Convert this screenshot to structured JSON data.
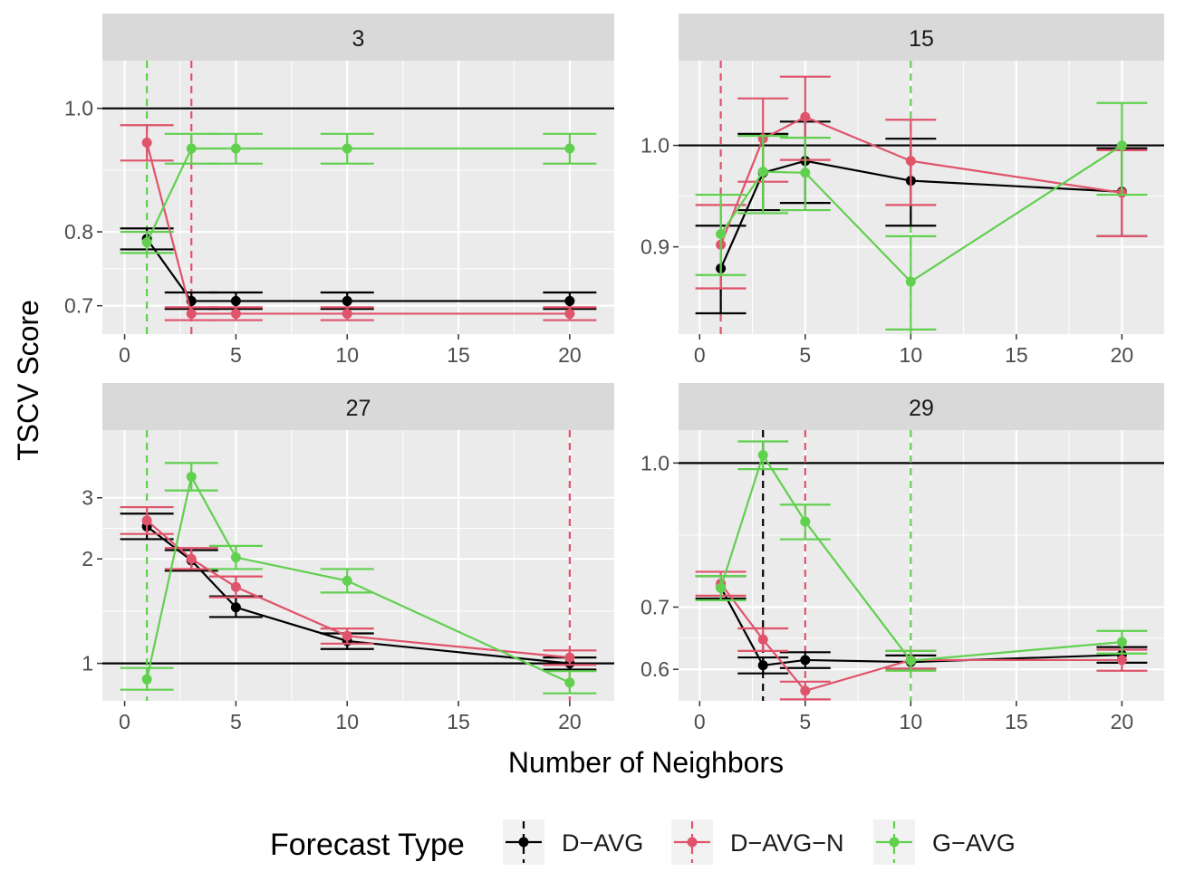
{
  "chart_data": {
    "type": "line",
    "xlabel": "Number of Neighbors",
    "ylabel": "TSCV Score",
    "x": [
      1,
      3,
      5,
      10,
      20
    ],
    "xlim": [
      -1,
      22
    ],
    "xticks": [
      0,
      5,
      10,
      15,
      20
    ],
    "colors": {
      "D-AVG": "#000000",
      "D-AVG-N": "#DF536B",
      "G-AVG": "#61D04F"
    },
    "legend": {
      "title": "Forecast Type",
      "position": "bottom",
      "items": [
        {
          "label": "D−AVG",
          "series": "D-AVG"
        },
        {
          "label": "D−AVG−N",
          "series": "D-AVG-N"
        },
        {
          "label": "G−AVG",
          "series": "G-AVG"
        }
      ]
    },
    "panels": [
      {
        "strip": "3",
        "yscale": "log",
        "ylim": [
          0.665,
          1.09
        ],
        "yticks": [
          0.7,
          0.8,
          1.0
        ],
        "ytick_labels": [
          "0.7",
          "0.8",
          "1.0"
        ],
        "hline": 1.0,
        "vlines": [
          {
            "series": "G-AVG",
            "x": 1
          },
          {
            "series": "D-AVG-N",
            "x": 3
          }
        ],
        "series": [
          {
            "name": "D-AVG",
            "values": [
              0.79,
              0.706,
              0.706,
              0.706,
              0.706
            ],
            "lower": [
              0.775,
              0.696,
              0.696,
              0.696,
              0.696
            ],
            "upper": [
              0.805,
              0.717,
              0.717,
              0.717,
              0.717
            ]
          },
          {
            "name": "D-AVG-N",
            "values": [
              0.94,
              0.69,
              0.69,
              0.69,
              0.69
            ],
            "lower": [
              0.91,
              0.682,
              0.682,
              0.682,
              0.682
            ],
            "upper": [
              0.97,
              0.698,
              0.698,
              0.698,
              0.698
            ]
          },
          {
            "name": "G-AVG",
            "values": [
              0.785,
              0.93,
              0.93,
              0.93,
              0.93
            ],
            "lower": [
              0.77,
              0.905,
              0.905,
              0.905,
              0.905
            ],
            "upper": [
              0.8,
              0.955,
              0.955,
              0.955,
              0.955
            ]
          }
        ]
      },
      {
        "strip": "15",
        "yscale": "log",
        "ylim": [
          0.822,
          1.092
        ],
        "yticks": [
          0.9,
          1.0
        ],
        "ytick_labels": [
          "0.9",
          "1.0"
        ],
        "hline": 1.0,
        "vlines": [
          {
            "series": "D-AVG-N",
            "x": 1
          },
          {
            "series": "G-AVG",
            "x": 10
          }
        ],
        "series": [
          {
            "name": "D-AVG",
            "values": [
              0.88,
              0.972,
              0.984,
              0.964,
              0.953
            ],
            "lower": [
              0.84,
              0.935,
              0.942,
              0.92,
              0.91
            ],
            "upper": [
              0.92,
              1.012,
              1.025,
              1.007,
              0.997
            ]
          },
          {
            "name": "D-AVG-N",
            "values": [
              0.902,
              1.007,
              1.03,
              0.984,
              0.952
            ],
            "lower": [
              0.862,
              0.963,
              0.985,
              0.94,
              0.91
            ],
            "upper": [
              0.94,
              1.05,
              1.074,
              1.027,
              0.995
            ]
          },
          {
            "name": "G-AVG",
            "values": [
              0.912,
              0.973,
              0.972,
              0.868,
              1.0
            ],
            "lower": [
              0.874,
              0.932,
              0.935,
              0.826,
              0.95
            ],
            "upper": [
              0.95,
              1.01,
              1.008,
              0.91,
              1.045
            ]
          }
        ]
      },
      {
        "strip": "27",
        "yscale": "log",
        "ylim": [
          0.78,
          4.7
        ],
        "yticks": [
          1,
          2,
          3
        ],
        "ytick_labels": [
          "1",
          "2",
          "3"
        ],
        "hline": 1,
        "vlines": [
          {
            "series": "G-AVG",
            "x": 1
          },
          {
            "series": "D-AVG-N",
            "x": 20
          }
        ],
        "series": [
          {
            "name": "D-AVG",
            "values": [
              2.48,
              1.98,
              1.45,
              1.16,
              1.0
            ],
            "lower": [
              2.28,
              1.85,
              1.36,
              1.1,
              0.96
            ],
            "upper": [
              2.7,
              2.12,
              1.56,
              1.22,
              1.04
            ]
          },
          {
            "name": "D-AVG-N",
            "values": [
              2.58,
              2.0,
              1.66,
              1.2,
              1.04
            ],
            "lower": [
              2.36,
              1.87,
              1.55,
              1.14,
              0.99
            ],
            "upper": [
              2.82,
              2.15,
              1.78,
              1.26,
              1.09
            ]
          },
          {
            "name": "G-AVG",
            "values": [
              0.9,
              3.45,
              2.02,
              1.73,
              0.88
            ],
            "lower": [
              0.84,
              3.15,
              1.87,
              1.6,
              0.82
            ],
            "upper": [
              0.97,
              3.78,
              2.18,
              1.87,
              0.95
            ]
          }
        ]
      },
      {
        "strip": "29",
        "yscale": "log",
        "ylim": [
          0.555,
          1.085
        ],
        "yticks": [
          0.6,
          0.7,
          1.0
        ],
        "ytick_labels": [
          "0.6",
          "0.7",
          "1.0"
        ],
        "hline": 1.0,
        "vlines": [
          {
            "series": "D-AVG",
            "x": 3
          },
          {
            "series": "D-AVG-N",
            "x": 5
          },
          {
            "series": "G-AVG",
            "x": 10
          }
        ],
        "series": [
          {
            "name": "D-AVG",
            "values": [
              0.735,
              0.606,
              0.614,
              0.611,
              0.622
            ],
            "lower": [
              0.715,
              0.594,
              0.602,
              0.601,
              0.61
            ],
            "upper": [
              0.756,
              0.618,
              0.626,
              0.621,
              0.634
            ]
          },
          {
            "name": "D-AVG-N",
            "values": [
              0.742,
              0.646,
              0.569,
              0.614,
              0.614
            ],
            "lower": [
              0.72,
              0.628,
              0.557,
              0.601,
              0.598
            ],
            "upper": [
              0.764,
              0.664,
              0.582,
              0.628,
              0.63
            ]
          },
          {
            "name": "G-AVG",
            "values": [
              0.734,
              1.02,
              0.865,
              0.613,
              0.642
            ],
            "lower": [
              0.712,
              0.985,
              0.828,
              0.598,
              0.624
            ],
            "upper": [
              0.756,
              1.055,
              0.902,
              0.628,
              0.66
            ]
          }
        ]
      }
    ]
  }
}
